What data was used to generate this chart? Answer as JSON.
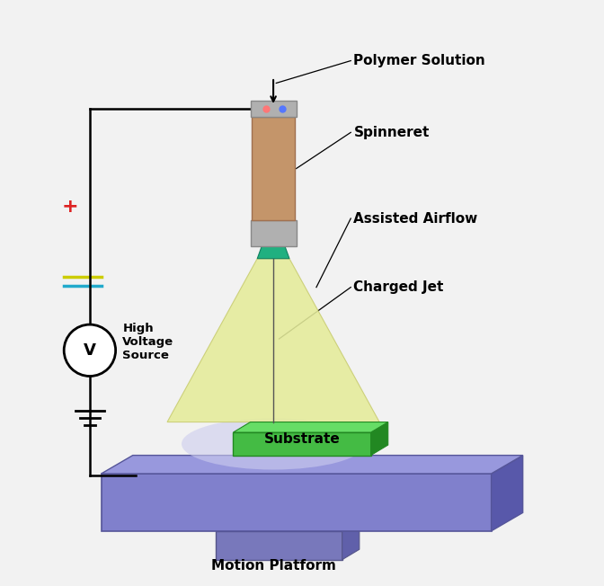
{
  "bg_color": "#f2f2f2",
  "labels": {
    "polymer_solution": "Polymer Solution",
    "spinneret": "Spinneret",
    "assisted_airflow": "Assisted Airflow",
    "charged_jet": "Charged Jet",
    "substrate": "Substrate",
    "motion_platform": "Motion Platform",
    "high_voltage": "High\nVoltage\nSource"
  },
  "colors": {
    "spinneret_body": "#c4956a",
    "spinneret_cap": "#b0b0b0",
    "spinneret_tip": "#20b080",
    "airflow_cone": "#dde870",
    "platform_top": "#9090cc",
    "platform_side": "#7070aa",
    "platform_pedestal": "#8080bb",
    "substrate_top": "#55cc55",
    "substrate_side": "#339933",
    "wire": "#000000",
    "plus_color": "#dd2222",
    "minus_color1": "#cccc00",
    "minus_color2": "#22aacc",
    "ground": "#000000",
    "text_color": "#000000"
  }
}
